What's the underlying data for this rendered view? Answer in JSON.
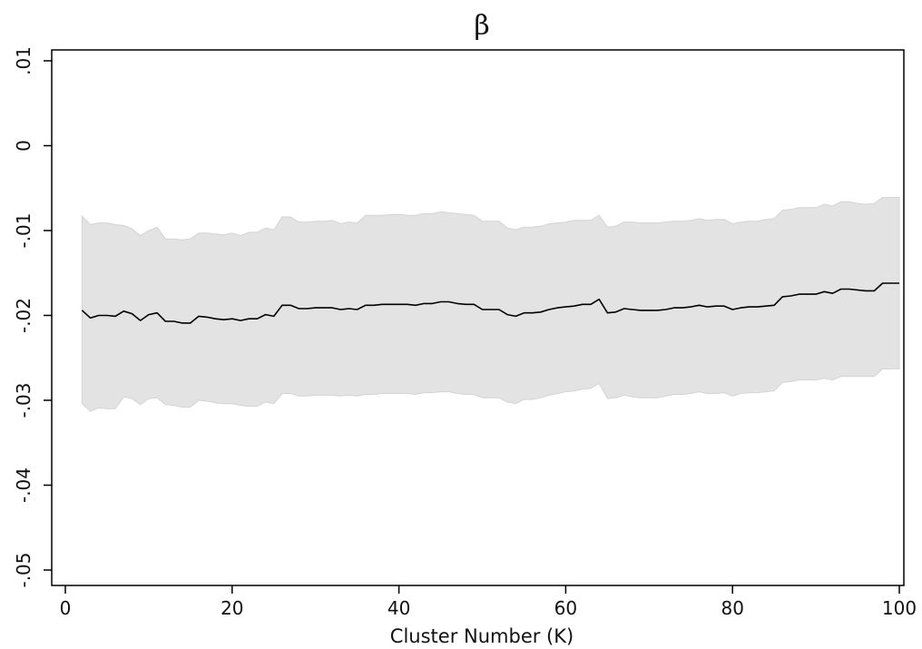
{
  "chart_data": {
    "type": "area",
    "title": "β",
    "xlabel": "Cluster Number (K)",
    "ylabel": "",
    "xlim": [
      0,
      100
    ],
    "ylim": [
      -0.05,
      0.01
    ],
    "x_ticks": [
      0,
      20,
      40,
      60,
      80,
      100
    ],
    "x_tick_labels": [
      "0",
      "20",
      "40",
      "60",
      "80",
      "100"
    ],
    "y_ticks": [
      0.01,
      0,
      -0.01,
      -0.02,
      -0.03,
      -0.04,
      -0.05
    ],
    "y_tick_labels": [
      ".01",
      "0",
      "-.01",
      "-.02",
      "-.03",
      "-.04",
      "-.05"
    ],
    "grid": false,
    "legend": "none",
    "colors": {
      "line": "#000000",
      "band": "#e3e3e3",
      "band_edge": "#d4d4d4",
      "axis": "#000000"
    },
    "series": [
      {
        "role": "estimate",
        "x": [
          2,
          3,
          4,
          5,
          6,
          7,
          8,
          9,
          10,
          11,
          12,
          13,
          14,
          15,
          16,
          17,
          18,
          19,
          20,
          21,
          22,
          23,
          24,
          25,
          26,
          27,
          28,
          29,
          30,
          31,
          32,
          33,
          34,
          35,
          36,
          37,
          38,
          39,
          40,
          41,
          42,
          43,
          44,
          45,
          46,
          47,
          48,
          49,
          50,
          51,
          52,
          53,
          54,
          55,
          56,
          57,
          58,
          59,
          60,
          61,
          62,
          63,
          64,
          65,
          66,
          67,
          68,
          69,
          70,
          71,
          72,
          73,
          74,
          75,
          76,
          77,
          78,
          79,
          80,
          81,
          82,
          83,
          84,
          85,
          86,
          87,
          88,
          89,
          90,
          91,
          92,
          93,
          94,
          95,
          96,
          97,
          98,
          99,
          100
        ],
        "y": [
          -0.0194,
          -0.0203,
          -0.02,
          -0.02,
          -0.0201,
          -0.0195,
          -0.0198,
          -0.0206,
          -0.0199,
          -0.0197,
          -0.0207,
          -0.0207,
          -0.0209,
          -0.0209,
          -0.0201,
          -0.0202,
          -0.0204,
          -0.0205,
          -0.0204,
          -0.0206,
          -0.0204,
          -0.0204,
          -0.0199,
          -0.0201,
          -0.0188,
          -0.0188,
          -0.0192,
          -0.0192,
          -0.0191,
          -0.0191,
          -0.0191,
          -0.0193,
          -0.0192,
          -0.0193,
          -0.0188,
          -0.0188,
          -0.0187,
          -0.0187,
          -0.0187,
          -0.0187,
          -0.0188,
          -0.0186,
          -0.0186,
          -0.0184,
          -0.0184,
          -0.0186,
          -0.0187,
          -0.0187,
          -0.0193,
          -0.0193,
          -0.0193,
          -0.0199,
          -0.0201,
          -0.0197,
          -0.0197,
          -0.0196,
          -0.0193,
          -0.0191,
          -0.019,
          -0.0189,
          -0.0187,
          -0.0187,
          -0.0181,
          -0.0197,
          -0.0196,
          -0.0192,
          -0.0193,
          -0.0194,
          -0.0194,
          -0.0194,
          -0.0193,
          -0.0191,
          -0.0191,
          -0.019,
          -0.0188,
          -0.019,
          -0.0189,
          -0.0189,
          -0.0193,
          -0.0191,
          -0.019,
          -0.019,
          -0.0189,
          -0.0188,
          -0.0178,
          -0.0177,
          -0.0175,
          -0.0175,
          -0.0175,
          -0.0172,
          -0.0174,
          -0.0169,
          -0.0169,
          -0.017,
          -0.0171,
          -0.0171,
          -0.0162,
          -0.0162,
          -0.0162
        ]
      },
      {
        "role": "ci_upper",
        "x": [
          2,
          3,
          4,
          5,
          6,
          7,
          8,
          9,
          10,
          11,
          12,
          13,
          14,
          15,
          16,
          17,
          18,
          19,
          20,
          21,
          22,
          23,
          24,
          25,
          26,
          27,
          28,
          29,
          30,
          31,
          32,
          33,
          34,
          35,
          36,
          37,
          38,
          39,
          40,
          41,
          42,
          43,
          44,
          45,
          46,
          47,
          48,
          49,
          50,
          51,
          52,
          53,
          54,
          55,
          56,
          57,
          58,
          59,
          60,
          61,
          62,
          63,
          64,
          65,
          66,
          67,
          68,
          69,
          70,
          71,
          72,
          73,
          74,
          75,
          76,
          77,
          78,
          79,
          80,
          81,
          82,
          83,
          84,
          85,
          86,
          87,
          88,
          89,
          90,
          91,
          92,
          93,
          94,
          95,
          96,
          97,
          98,
          99,
          100
        ],
        "y": [
          -0.0083,
          -0.0093,
          -0.0091,
          -0.0091,
          -0.0093,
          -0.0094,
          -0.0098,
          -0.0106,
          -0.01,
          -0.0096,
          -0.011,
          -0.011,
          -0.0111,
          -0.011,
          -0.0103,
          -0.0103,
          -0.0104,
          -0.0105,
          -0.0103,
          -0.0106,
          -0.0102,
          -0.0102,
          -0.0097,
          -0.0099,
          -0.0084,
          -0.0084,
          -0.009,
          -0.009,
          -0.0089,
          -0.0089,
          -0.0088,
          -0.0092,
          -0.009,
          -0.0091,
          -0.0082,
          -0.0082,
          -0.0082,
          -0.0081,
          -0.0081,
          -0.0082,
          -0.0082,
          -0.008,
          -0.008,
          -0.0078,
          -0.0079,
          -0.008,
          -0.0081,
          -0.0082,
          -0.0089,
          -0.0089,
          -0.0089,
          -0.0097,
          -0.0099,
          -0.0096,
          -0.0096,
          -0.0095,
          -0.0092,
          -0.0091,
          -0.009,
          -0.0088,
          -0.0088,
          -0.0088,
          -0.0082,
          -0.0096,
          -0.0095,
          -0.009,
          -0.009,
          -0.0091,
          -0.0091,
          -0.0091,
          -0.009,
          -0.0089,
          -0.0089,
          -0.0088,
          -0.0086,
          -0.0088,
          -0.0087,
          -0.0087,
          -0.0092,
          -0.009,
          -0.0089,
          -0.0089,
          -0.0087,
          -0.0086,
          -0.0076,
          -0.0075,
          -0.0073,
          -0.0073,
          -0.0073,
          -0.0069,
          -0.0071,
          -0.0066,
          -0.0066,
          -0.0068,
          -0.0069,
          -0.0068,
          -0.0061,
          -0.0061,
          -0.0061
        ]
      },
      {
        "role": "ci_lower",
        "x": [
          2,
          3,
          4,
          5,
          6,
          7,
          8,
          9,
          10,
          11,
          12,
          13,
          14,
          15,
          16,
          17,
          18,
          19,
          20,
          21,
          22,
          23,
          24,
          25,
          26,
          27,
          28,
          29,
          30,
          31,
          32,
          33,
          34,
          35,
          36,
          37,
          38,
          39,
          40,
          41,
          42,
          43,
          44,
          45,
          46,
          47,
          48,
          49,
          50,
          51,
          52,
          53,
          54,
          55,
          56,
          57,
          58,
          59,
          60,
          61,
          62,
          63,
          64,
          65,
          66,
          67,
          68,
          69,
          70,
          71,
          72,
          73,
          74,
          75,
          76,
          77,
          78,
          79,
          80,
          81,
          82,
          83,
          84,
          85,
          86,
          87,
          88,
          89,
          90,
          91,
          92,
          93,
          94,
          95,
          96,
          97,
          98,
          99,
          100
        ],
        "y": [
          -0.0304,
          -0.0313,
          -0.0309,
          -0.031,
          -0.031,
          -0.0296,
          -0.0298,
          -0.0305,
          -0.0298,
          -0.0297,
          -0.0305,
          -0.0306,
          -0.0308,
          -0.0308,
          -0.03,
          -0.0301,
          -0.0303,
          -0.0304,
          -0.0304,
          -0.0306,
          -0.0307,
          -0.0307,
          -0.0302,
          -0.0304,
          -0.0292,
          -0.0292,
          -0.0295,
          -0.0295,
          -0.0294,
          -0.0294,
          -0.0294,
          -0.0295,
          -0.0294,
          -0.0295,
          -0.0293,
          -0.0293,
          -0.0292,
          -0.0292,
          -0.0292,
          -0.0292,
          -0.0293,
          -0.0291,
          -0.0291,
          -0.029,
          -0.029,
          -0.0292,
          -0.0293,
          -0.0293,
          -0.0297,
          -0.0297,
          -0.0297,
          -0.0302,
          -0.0304,
          -0.0299,
          -0.0299,
          -0.0297,
          -0.0294,
          -0.0292,
          -0.029,
          -0.0289,
          -0.0287,
          -0.0286,
          -0.028,
          -0.0298,
          -0.0297,
          -0.0294,
          -0.0296,
          -0.0297,
          -0.0297,
          -0.0297,
          -0.0295,
          -0.0293,
          -0.0293,
          -0.0292,
          -0.029,
          -0.0292,
          -0.0292,
          -0.0291,
          -0.0295,
          -0.0292,
          -0.0291,
          -0.0291,
          -0.029,
          -0.0289,
          -0.0279,
          -0.0278,
          -0.0276,
          -0.0276,
          -0.0276,
          -0.0274,
          -0.0276,
          -0.0272,
          -0.0272,
          -0.0272,
          -0.0272,
          -0.0272,
          -0.0263,
          -0.0263,
          -0.0263
        ]
      }
    ]
  }
}
